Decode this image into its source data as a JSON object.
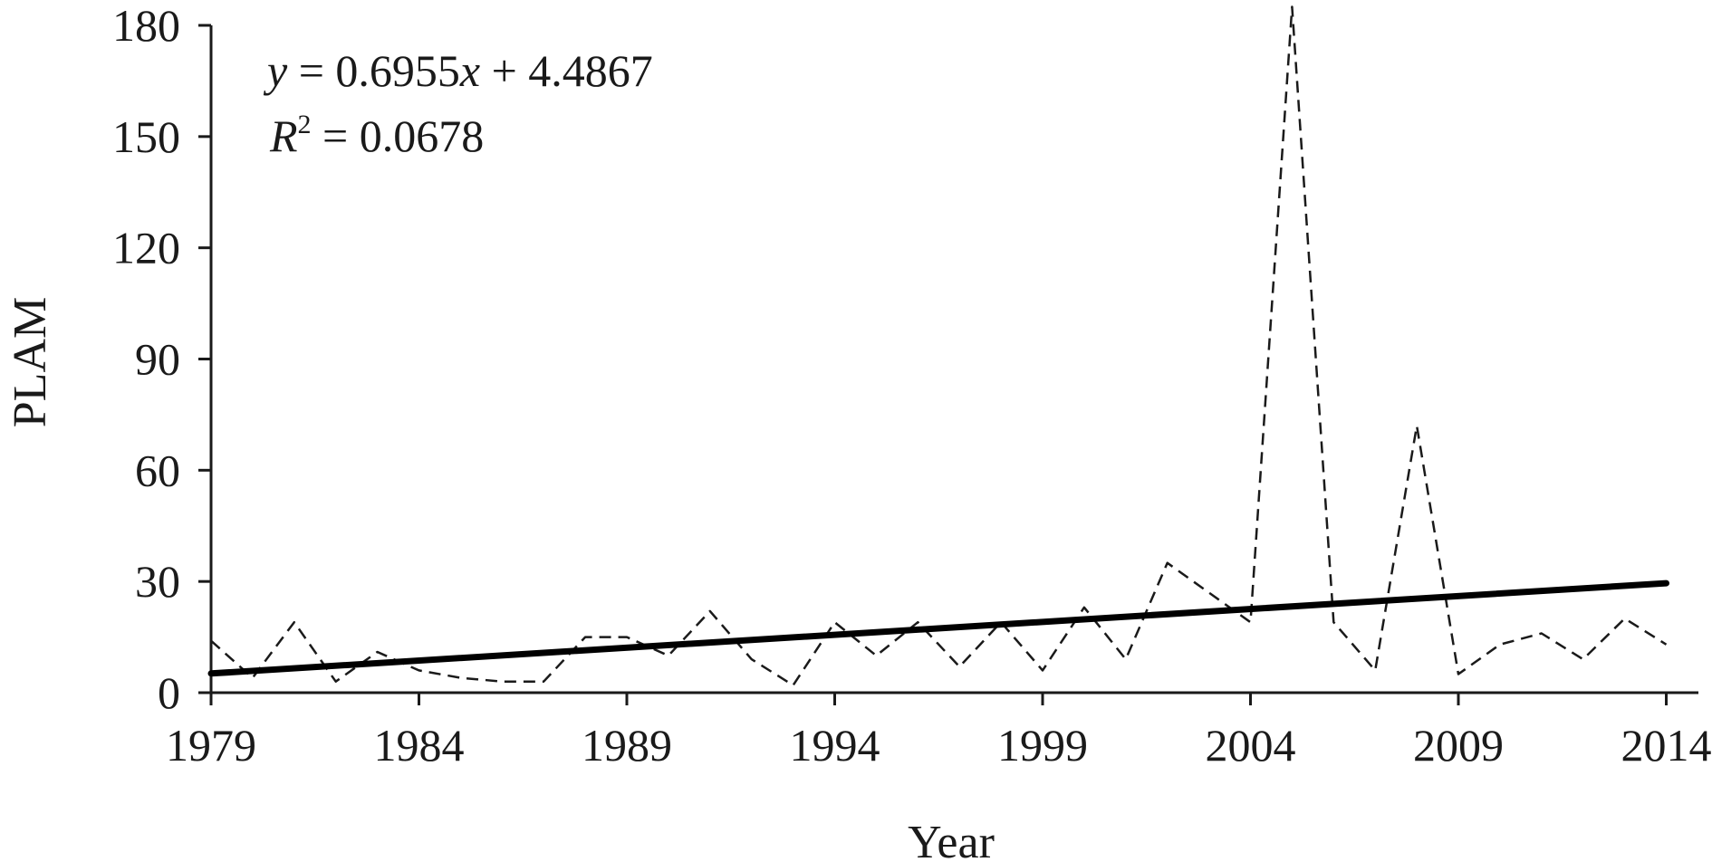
{
  "chart_data": {
    "type": "line",
    "xlabel": "Year",
    "ylabel": "PLAM",
    "xlim": [
      1979,
      2015
    ],
    "ylim": [
      0,
      180
    ],
    "x_ticks": [
      1979,
      1984,
      1989,
      1994,
      1999,
      2004,
      2009,
      2014
    ],
    "y_ticks": [
      0,
      30,
      60,
      90,
      120,
      150,
      180
    ],
    "grid": false,
    "legend": "none",
    "series": [
      {
        "style": "dashed",
        "color": "#1a1a1a",
        "x": [
          1979,
          1980,
          1981,
          1982,
          1983,
          1984,
          1985,
          1986,
          1987,
          1988,
          1989,
          1990,
          1991,
          1992,
          1993,
          1994,
          1995,
          1996,
          1997,
          1998,
          1999,
          2000,
          2001,
          2002,
          2003,
          2004,
          2005,
          2006,
          2007,
          2008,
          2009,
          2010,
          2011,
          2012,
          2013,
          2014
        ],
        "values": [
          14,
          4,
          19,
          3,
          11,
          6,
          4,
          3,
          3,
          15,
          15,
          10,
          22,
          9,
          2,
          19,
          10,
          19,
          7,
          19,
          6,
          23,
          9,
          35,
          27,
          19,
          185,
          19,
          6,
          72,
          5,
          13,
          16,
          9,
          20,
          13
        ]
      },
      {
        "style": "solid",
        "color": "#000000",
        "x": [
          1979,
          2014
        ],
        "values": [
          5.18,
          29.52
        ]
      }
    ],
    "annotations": {
      "equation": {
        "y_var": "y",
        "middle": " = 0.6955",
        "x_var": "x",
        "tail": " + 4.4867"
      },
      "r2": {
        "var": "R",
        "sup": "2",
        "tail": " = 0.0678"
      }
    }
  }
}
